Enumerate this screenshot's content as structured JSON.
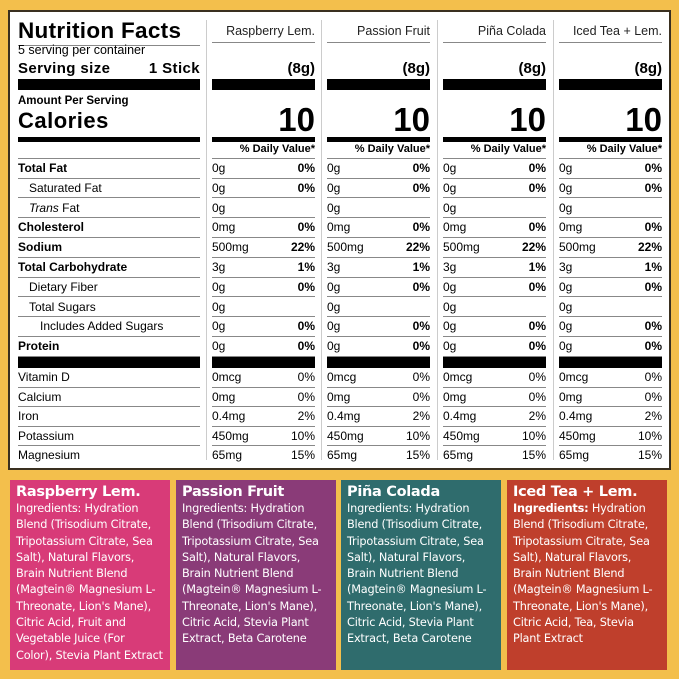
{
  "title": "Nutrition Facts",
  "servings": "5 serving per container",
  "serving_size_label": "Serving size",
  "serving_size_value": "1 Stick",
  "amount_per_serving": "Amount Per Serving",
  "calories_label": "Calories",
  "dv_header": "% Daily Value*",
  "nutrient_labels": [
    {
      "label": "Total Fat",
      "bold": true
    },
    {
      "label": "Saturated Fat",
      "indent": 1
    },
    {
      "label": "Fat",
      "italic_prefix": "Trans",
      "indent": 1
    },
    {
      "label": "Cholesterol",
      "bold": true
    },
    {
      "label": "Sodium",
      "bold": true
    },
    {
      "label": "Total Carbohydrate",
      "bold": true
    },
    {
      "label": "Dietary Fiber",
      "indent": 1
    },
    {
      "label": "Total Sugars",
      "indent": 1
    },
    {
      "label": "Includes Added Sugars",
      "indent": 2
    },
    {
      "label": "Protein",
      "bold": true
    }
  ],
  "vitamin_labels": [
    "Vitamin D",
    "Calcium",
    "Iron",
    "Potassium",
    "Magnesium"
  ],
  "flavors": [
    {
      "name": "Raspberry Lem.",
      "weight": "(8g)",
      "calories": "10",
      "color": "#D83B78"
    },
    {
      "name": "Passion Fruit",
      "weight": "(8g)",
      "calories": "10",
      "color": "#8A3B78"
    },
    {
      "name": "Piña Colada",
      "weight": "(8g)",
      "calories": "10",
      "color": "#2F6C6D"
    },
    {
      "name": "Iced Tea + Lem.",
      "weight": "(8g)",
      "calories": "10",
      "color": "#BF3F2C"
    }
  ],
  "nutrient_values": [
    [
      "0g",
      "0%"
    ],
    [
      "0g",
      "0%"
    ],
    [
      "0g",
      ""
    ],
    [
      "0mg",
      "0%"
    ],
    [
      "500mg",
      "22%"
    ],
    [
      "3g",
      "1%"
    ],
    [
      "0g",
      "0%"
    ],
    [
      "0g",
      ""
    ],
    [
      "0g",
      "0%"
    ],
    [
      "0g",
      "0%"
    ]
  ],
  "vitamin_values": [
    [
      "0mcg",
      "0%"
    ],
    [
      "0mg",
      "0%"
    ],
    [
      "0.4mg",
      "2%"
    ],
    [
      "450mg",
      "10%"
    ],
    [
      "65mg",
      "15%"
    ]
  ],
  "ingredients": [
    {
      "title": "Raspberry Lem.",
      "label": "Ingredients:",
      "text": " Hydration Blend (Trisodium Citrate, Tripotassium Citrate, Sea Salt), Natural Flavors, Brain Nutrient Blend (Magtein® Magnesium L-Threonate, Lion's Mane), Citric Acid, Fruit and Vegetable Juice (For Color), Stevia Plant Extract"
    },
    {
      "title": "Passion Fruit",
      "label": "Ingredients:",
      "text": " Hydration Blend (Trisodium Citrate, Tripotassium Citrate, Sea Salt), Natural Flavors, Brain Nutrient Blend (Magtein® Magnesium L-Threonate, Lion's Mane), Citric Acid, Stevia Plant Extract, Beta Carotene"
    },
    {
      "title": "Piña Colada",
      "label": "Ingredients:",
      "text": "  Hydration Blend (Trisodium Citrate, Tripotassium Citrate, Sea Salt), Natural Flavors, Brain Nutrient Blend (Magtein® Magnesium L-Threonate, Lion's Mane), Citric Acid, Stevia Plant Extract, Beta Carotene"
    },
    {
      "title": "Iced Tea + Lem.",
      "label": "Ingredients:",
      "text": " Hydration Blend (Trisodium Citrate, Tripotassium Citrate, Sea Salt), Natural Flavors, Brain Nutrient Blend (Magtein® Magnesium L-Threonate, Lion's Mane), Citric Acid, Tea, Stevia Plant Extract"
    }
  ]
}
